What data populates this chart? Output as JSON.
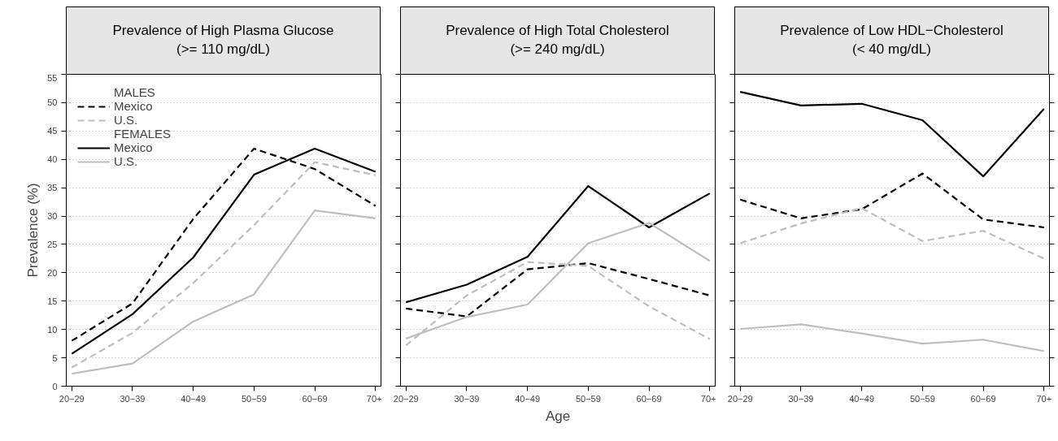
{
  "chart_data": [
    {
      "type": "line",
      "title": "Prevalence of High Plasma Glucose\n(>= 110 mg/dL)",
      "ylabel": "Prevalence (%)",
      "categories": [
        "20−29",
        "30−39",
        "40−49",
        "50−59",
        "60−69",
        "70+"
      ],
      "ylim": [
        0,
        55
      ],
      "yticks": [
        0,
        5,
        10,
        15,
        20,
        25,
        30,
        35,
        40,
        45,
        50,
        55
      ],
      "grid": "y",
      "legend": "top left",
      "annotations": [
        "MALES",
        "FEMALES"
      ],
      "series": [
        {
          "name": "Mexico",
          "color": "#000000",
          "line_style": "dashed",
          "values": [
            8.0,
            14.6,
            29.5,
            41.9,
            38.3,
            31.8
          ]
        },
        {
          "name": "U.S.",
          "color": "#bebebe",
          "line_style": "dashed",
          "values": [
            3.3,
            9.4,
            18.2,
            28.4,
            39.5,
            37.2
          ]
        },
        {
          "name": "Mexico",
          "color": "#000000",
          "line_style": "solid",
          "values": [
            5.7,
            12.7,
            22.7,
            37.3,
            41.9,
            37.8
          ]
        },
        {
          "name": "U.S.",
          "color": "#bebebe",
          "line_style": "solid",
          "values": [
            2.2,
            4.0,
            11.4,
            16.2,
            31.0,
            29.6
          ]
        }
      ]
    },
    {
      "type": "line",
      "title": "Prevalence of High Total Cholesterol\n(>= 240 mg/dL)",
      "xlabel": "Age",
      "categories": [
        "20−29",
        "30−39",
        "40−49",
        "50−59",
        "60−69",
        "70+"
      ],
      "ylim": [
        0,
        55
      ],
      "yticks": [
        0,
        5,
        10,
        15,
        20,
        25,
        30,
        35,
        40,
        45,
        50,
        55
      ],
      "grid": "y",
      "tick_labels": "x",
      "series": [
        {
          "color": "#000000",
          "line_style": "dashed",
          "values": [
            13.7,
            12.3,
            20.6,
            21.7,
            18.9,
            16.0
          ]
        },
        {
          "color": "#bebebe",
          "line_style": "dashed",
          "values": [
            7.2,
            16.0,
            21.9,
            21.2,
            14.1,
            8.3
          ]
        },
        {
          "color": "#000000",
          "line_style": "solid",
          "values": [
            14.8,
            17.9,
            22.8,
            35.3,
            28.0,
            34.0
          ]
        },
        {
          "color": "#bebebe",
          "line_style": "solid",
          "values": [
            8.4,
            12.2,
            14.4,
            25.2,
            28.8,
            22.1
          ]
        }
      ]
    },
    {
      "type": "line",
      "title": "Prevalence of Low HDL−Cholesterol\n(< 40 mg/dL)",
      "categories": [
        "20−29",
        "30−39",
        "40−49",
        "50−59",
        "60−69",
        "70+"
      ],
      "ylim": [
        0,
        55
      ],
      "yticks": [
        0,
        5,
        10,
        15,
        20,
        25,
        30,
        35,
        40,
        45,
        50,
        55
      ],
      "grid": "y",
      "tick_labels": "x",
      "series": [
        {
          "color": "#000000",
          "line_style": "dashed",
          "values": [
            32.9,
            29.6,
            31.2,
            37.5,
            29.4,
            28.0
          ]
        },
        {
          "color": "#bebebe",
          "line_style": "dashed",
          "values": [
            25.2,
            28.7,
            31.4,
            25.6,
            27.4,
            22.5
          ]
        },
        {
          "color": "#000000",
          "line_style": "solid",
          "values": [
            51.9,
            49.5,
            49.8,
            46.9,
            37.0,
            48.9
          ]
        },
        {
          "color": "#bebebe",
          "line_style": "solid",
          "values": [
            10.1,
            10.9,
            9.3,
            7.5,
            8.2,
            6.2
          ]
        }
      ]
    }
  ]
}
